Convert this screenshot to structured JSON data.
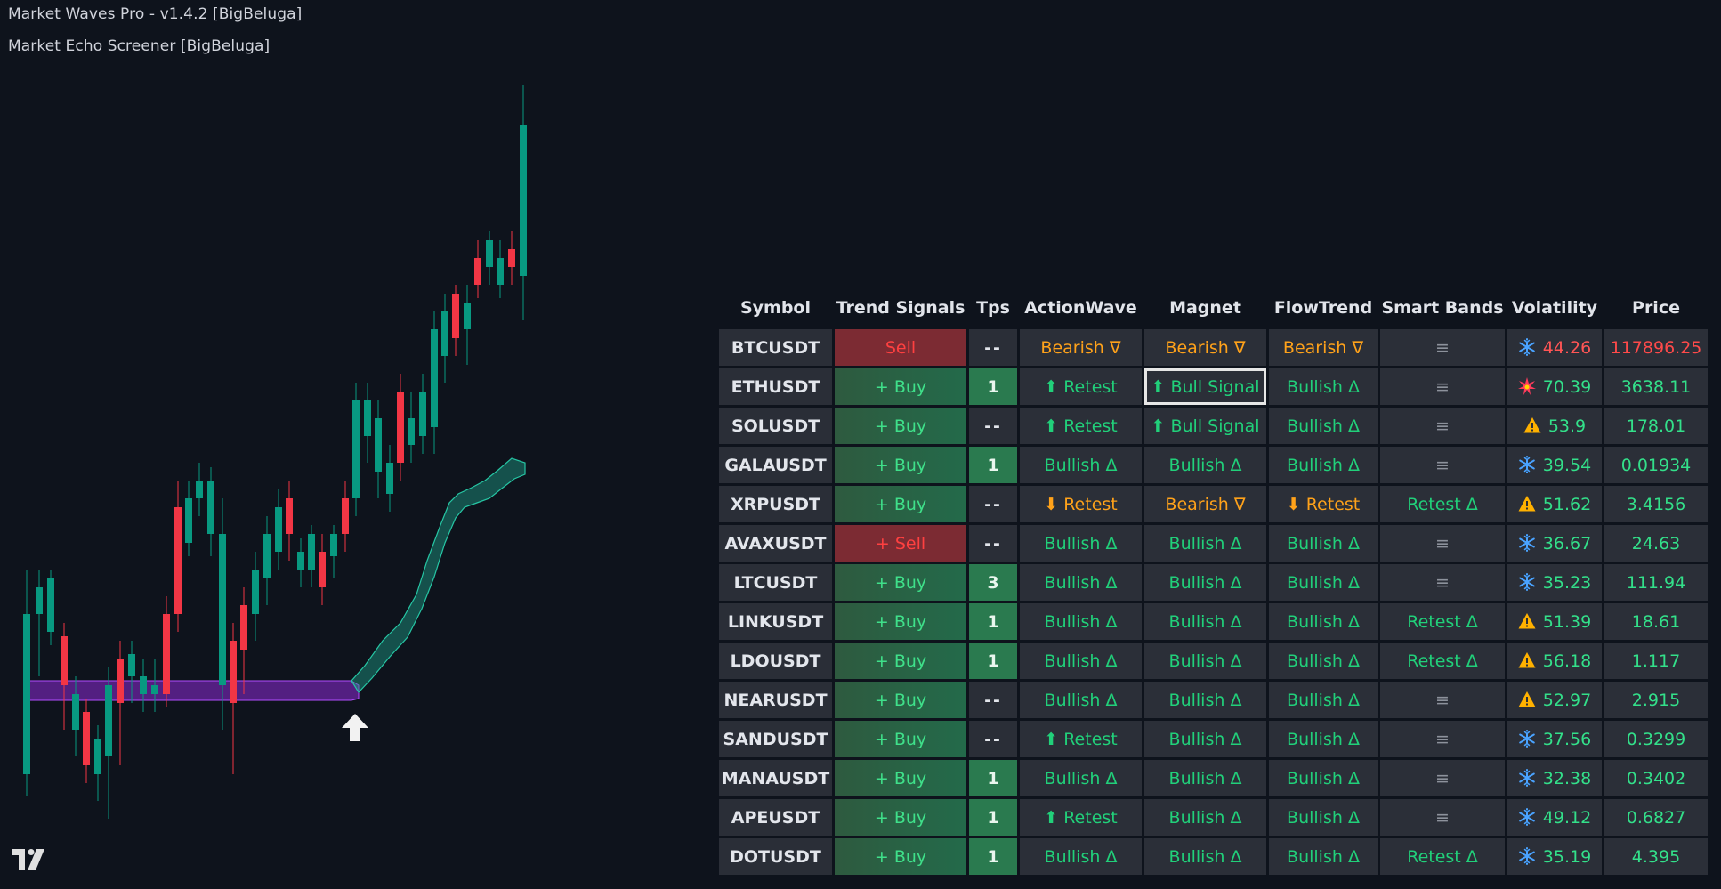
{
  "legend": {
    "indicator1": "Market Waves Pro - v1.4.2 [BigBeluga]",
    "indicator2": "Market Echo Screener [BigBeluga]"
  },
  "colors": {
    "background": "#0e131c",
    "bull_candle": "#089981",
    "bear_candle": "#f23645",
    "purple_band": "#8c2ad6",
    "teal_band": "#1e9e87",
    "bull_text": "#21d07a",
    "bear_text": "#ffa21a"
  },
  "screener": {
    "headers": [
      "Symbol",
      "Trend Signals",
      "Tps",
      "ActionWave",
      "Magnet",
      "FlowTrend",
      "Smart Bands",
      "Volatility",
      "Price"
    ],
    "rows": [
      {
        "symbol": "BTCUSDT",
        "trend": "Sell",
        "trend_type": "sell",
        "tps": "--",
        "action": "Bearish ∇",
        "action_type": "bear",
        "magnet": "Bearish ∇",
        "magnet_type": "bear",
        "flow": "Bearish ∇",
        "flow_type": "bear",
        "bands": "≡",
        "bands_type": "neutral",
        "vol_icon": "snowflake-icon",
        "vol": "44.26",
        "vol_type": "hot",
        "price": "117896.25",
        "price_type": "red"
      },
      {
        "symbol": "ETHUSDT",
        "trend": "+ Buy",
        "trend_type": "buy",
        "tps": "1",
        "action": "⬆ Retest",
        "action_type": "bull",
        "magnet": "⬆ Bull Signal",
        "magnet_type": "bull",
        "flow": "Bullish Δ",
        "flow_type": "bull",
        "bands": "≡",
        "bands_type": "neutral",
        "vol_icon": "burst-icon",
        "vol": "70.39",
        "vol_type": "ok",
        "price": "3638.11",
        "price_type": "green"
      },
      {
        "symbol": "SOLUSDT",
        "trend": "+ Buy",
        "trend_type": "buy",
        "tps": "--",
        "action": "⬆ Retest",
        "action_type": "bull",
        "magnet": "⬆ Bull Signal",
        "magnet_type": "bull",
        "flow": "Bullish Δ",
        "flow_type": "bull",
        "bands": "≡",
        "bands_type": "neutral",
        "vol_icon": "warning-icon",
        "vol": "53.9",
        "vol_type": "ok",
        "price": "178.01",
        "price_type": "green"
      },
      {
        "symbol": "GALAUSDT",
        "trend": "+ Buy",
        "trend_type": "buy",
        "tps": "1",
        "action": "Bullish Δ",
        "action_type": "bull",
        "magnet": "Bullish Δ",
        "magnet_type": "bull",
        "flow": "Bullish Δ",
        "flow_type": "bull",
        "bands": "≡",
        "bands_type": "neutral",
        "vol_icon": "snowflake-icon",
        "vol": "39.54",
        "vol_type": "ok",
        "price": "0.01934",
        "price_type": "green"
      },
      {
        "symbol": "XRPUSDT",
        "trend": "+ Buy",
        "trend_type": "buy",
        "tps": "--",
        "action": "⬇ Retest",
        "action_type": "bear",
        "magnet": "Bearish ∇",
        "magnet_type": "bear",
        "flow": "⬇ Retest",
        "flow_type": "bear",
        "bands": "Retest Δ",
        "bands_type": "bull",
        "vol_icon": "warning-icon",
        "vol": "51.62",
        "vol_type": "ok",
        "price": "3.4156",
        "price_type": "green"
      },
      {
        "symbol": "AVAXUSDT",
        "trend": "+ Sell",
        "trend_type": "sell",
        "tps": "--",
        "action": "Bullish Δ",
        "action_type": "bull",
        "magnet": "Bullish Δ",
        "magnet_type": "bull",
        "flow": "Bullish Δ",
        "flow_type": "bull",
        "bands": "≡",
        "bands_type": "neutral",
        "vol_icon": "snowflake-icon",
        "vol": "36.67",
        "vol_type": "ok",
        "price": "24.63",
        "price_type": "green"
      },
      {
        "symbol": "LTCUSDT",
        "trend": "+ Buy",
        "trend_type": "buy",
        "tps": "3",
        "action": "Bullish Δ",
        "action_type": "bull",
        "magnet": "Bullish Δ",
        "magnet_type": "bull",
        "flow": "Bullish Δ",
        "flow_type": "bull",
        "bands": "≡",
        "bands_type": "neutral",
        "vol_icon": "snowflake-icon",
        "vol": "35.23",
        "vol_type": "ok",
        "price": "111.94",
        "price_type": "green"
      },
      {
        "symbol": "LINKUSDT",
        "trend": "+ Buy",
        "trend_type": "buy",
        "tps": "1",
        "action": "Bullish Δ",
        "action_type": "bull",
        "magnet": "Bullish Δ",
        "magnet_type": "bull",
        "flow": "Bullish Δ",
        "flow_type": "bull",
        "bands": "Retest Δ",
        "bands_type": "bull",
        "vol_icon": "warning-icon",
        "vol": "51.39",
        "vol_type": "ok",
        "price": "18.61",
        "price_type": "green"
      },
      {
        "symbol": "LDOUSDT",
        "trend": "+ Buy",
        "trend_type": "buy",
        "tps": "1",
        "action": "Bullish Δ",
        "action_type": "bull",
        "magnet": "Bullish Δ",
        "magnet_type": "bull",
        "flow": "Bullish Δ",
        "flow_type": "bull",
        "bands": "Retest Δ",
        "bands_type": "bull",
        "vol_icon": "warning-icon",
        "vol": "56.18",
        "vol_type": "ok",
        "price": "1.117",
        "price_type": "green"
      },
      {
        "symbol": "NEARUSDT",
        "trend": "+ Buy",
        "trend_type": "buy",
        "tps": "--",
        "action": "Bullish Δ",
        "action_type": "bull",
        "magnet": "Bullish Δ",
        "magnet_type": "bull",
        "flow": "Bullish Δ",
        "flow_type": "bull",
        "bands": "≡",
        "bands_type": "neutral",
        "vol_icon": "warning-icon",
        "vol": "52.97",
        "vol_type": "ok",
        "price": "2.915",
        "price_type": "green"
      },
      {
        "symbol": "SANDUSDT",
        "trend": "+ Buy",
        "trend_type": "buy",
        "tps": "--",
        "action": "⬆ Retest",
        "action_type": "bull",
        "magnet": "Bullish Δ",
        "magnet_type": "bull",
        "flow": "Bullish Δ",
        "flow_type": "bull",
        "bands": "≡",
        "bands_type": "neutral",
        "vol_icon": "snowflake-icon",
        "vol": "37.56",
        "vol_type": "ok",
        "price": "0.3299",
        "price_type": "green"
      },
      {
        "symbol": "MANAUSDT",
        "trend": "+ Buy",
        "trend_type": "buy",
        "tps": "1",
        "action": "Bullish Δ",
        "action_type": "bull",
        "magnet": "Bullish Δ",
        "magnet_type": "bull",
        "flow": "Bullish Δ",
        "flow_type": "bull",
        "bands": "≡",
        "bands_type": "neutral",
        "vol_icon": "snowflake-icon",
        "vol": "32.38",
        "vol_type": "ok",
        "price": "0.3402",
        "price_type": "green"
      },
      {
        "symbol": "APEUSDT",
        "trend": "+ Buy",
        "trend_type": "buy",
        "tps": "1",
        "action": "⬆ Retest",
        "action_type": "bull",
        "magnet": "Bullish Δ",
        "magnet_type": "bull",
        "flow": "Bullish Δ",
        "flow_type": "bull",
        "bands": "≡",
        "bands_type": "neutral",
        "vol_icon": "snowflake-icon",
        "vol": "49.12",
        "vol_type": "ok",
        "price": "0.6827",
        "price_type": "green"
      },
      {
        "symbol": "DOTUSDT",
        "trend": "+ Buy",
        "trend_type": "buy",
        "tps": "1",
        "action": "Bullish Δ",
        "action_type": "bull",
        "magnet": "Bullish Δ",
        "magnet_type": "bull",
        "flow": "Bullish Δ",
        "flow_type": "bull",
        "bands": "Retest Δ",
        "bands_type": "bull",
        "vol_icon": "snowflake-icon",
        "vol": "35.19",
        "vol_type": "ok",
        "price": "4.395",
        "price_type": "green"
      }
    ]
  }
}
